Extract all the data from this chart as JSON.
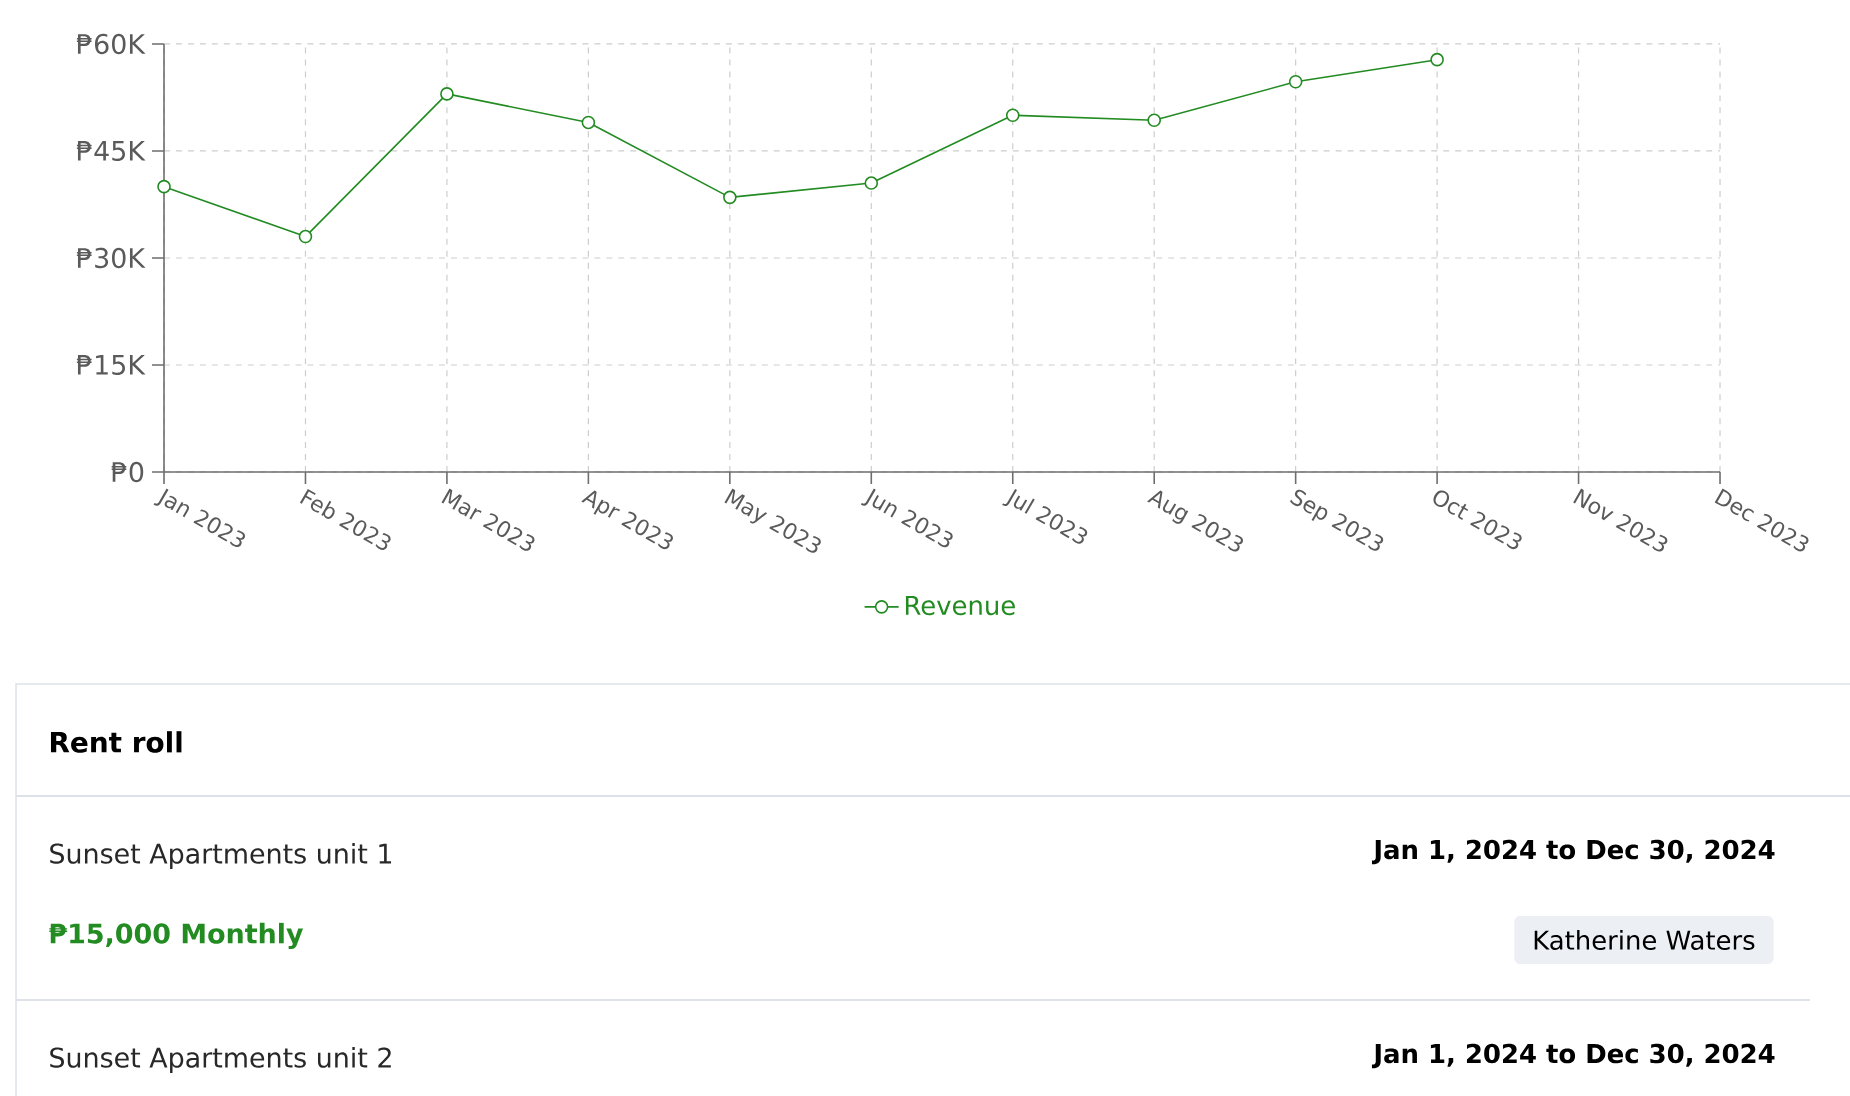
{
  "chart_data": [
    {
      "type": "line",
      "categories": [
        "Jan 2023",
        "Feb 2023",
        "Mar 2023",
        "Apr 2023",
        "May 2023",
        "Jun 2023",
        "Jul 2023",
        "Aug 2023",
        "Sep 2023",
        "Oct 2023",
        "Nov 2023",
        "Dec 2023"
      ],
      "series": [
        {
          "name": "Revenue",
          "color": "#228b22",
          "values": [
            40000,
            33000,
            53000,
            49000,
            38500,
            40500,
            50000,
            49300,
            54700,
            57800,
            null,
            null
          ]
        }
      ],
      "ylim": [
        0,
        60000
      ],
      "yticks": [
        {
          "value": 0,
          "label": "₱0"
        },
        {
          "value": 15000,
          "label": "₱15K"
        },
        {
          "value": 30000,
          "label": "₱30K"
        },
        {
          "value": 45000,
          "label": "₱45K"
        },
        {
          "value": 60000,
          "label": "₱60K"
        }
      ],
      "grid": true,
      "legend": "bottom",
      "marker": "circle",
      "line_style": "solid"
    },
    {
      "type": "other",
      "title": "Rent roll",
      "annotations": [
        "Sunset Apartments unit 1",
        "₱15,000 Monthly",
        "Jan 1, 2024 to Dec 30, 2024",
        "Katherine Waters",
        "Sunset Apartments unit 2",
        "Jan 1, 2024 to Dec 30, 2024"
      ]
    }
  ]
}
